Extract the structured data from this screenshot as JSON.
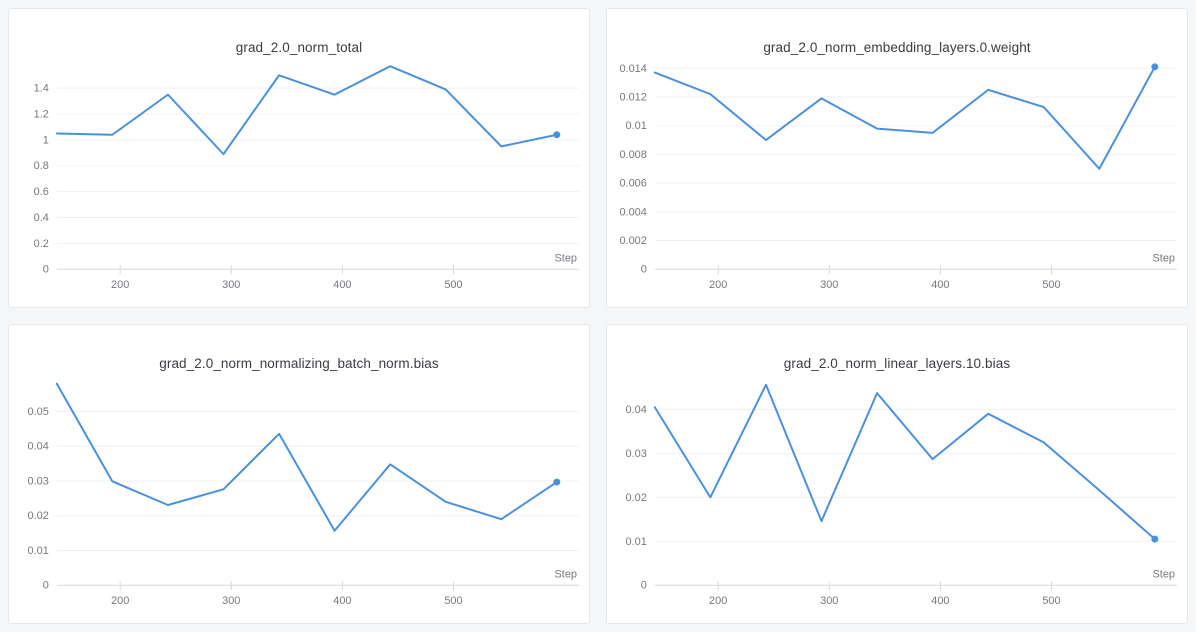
{
  "colors": {
    "line": "#4a90db",
    "endpoint_dot": "#4a90db",
    "gridline": "#f0f0f3",
    "axis_baseline": "#d9d9de",
    "tick_mark": "#d9d9de",
    "tick_label": "#78777f",
    "axis_label": "#78777f",
    "title": "#3b3b43",
    "card_background": "#ffffff",
    "card_border": "#e6e7e9",
    "page_background": "#f5f6f7"
  },
  "chart_data": [
    {
      "type": "line",
      "title": "grad_2.0_norm_total",
      "xlabel": "Step",
      "ylabel": "",
      "x": [
        143,
        193,
        243,
        293,
        343,
        393,
        443,
        493,
        543,
        593
      ],
      "values": [
        1.05,
        1.04,
        1.35,
        0.89,
        1.5,
        1.35,
        1.57,
        1.39,
        0.95,
        1.04
      ],
      "x_ticks": [
        200,
        300,
        400,
        500
      ],
      "xlim": [
        143,
        613
      ],
      "y_ticks": [
        0,
        0.2,
        0.4,
        0.6,
        0.8,
        1,
        1.2,
        1.4
      ],
      "y_tick_labels": [
        "0",
        "0.2",
        "0.4",
        "0.6",
        "0.8",
        "1",
        "1.2",
        "1.4"
      ],
      "ylim": [
        0,
        1.628
      ],
      "grid": "horizontal",
      "legend": "none",
      "endpoint_marker": true
    },
    {
      "type": "line",
      "title": "grad_2.0_norm_embedding_layers.0.weight",
      "xlabel": "Step",
      "ylabel": "",
      "x": [
        143,
        193,
        243,
        293,
        343,
        393,
        443,
        493,
        543,
        593
      ],
      "values": [
        0.0137,
        0.0122,
        0.009,
        0.0119,
        0.0098,
        0.0095,
        0.0125,
        0.0113,
        0.007,
        0.0141
      ],
      "x_ticks": [
        200,
        300,
        400,
        500
      ],
      "xlim": [
        143,
        613
      ],
      "y_ticks": [
        0,
        0.002,
        0.004,
        0.006,
        0.008,
        0.01,
        0.012,
        0.014
      ],
      "y_tick_labels": [
        "0",
        "0.002",
        "0.004",
        "0.006",
        "0.008",
        "0.01",
        "0.012",
        "0.014"
      ],
      "ylim": [
        0,
        0.01467
      ],
      "grid": "horizontal",
      "legend": "none",
      "endpoint_marker": true
    },
    {
      "type": "line",
      "title": "grad_2.0_norm_normalizing_batch_norm.bias",
      "xlabel": "Step",
      "ylabel": "",
      "x": [
        143,
        193,
        243,
        293,
        343,
        393,
        443,
        493,
        543,
        593
      ],
      "values": [
        0.058,
        0.0299,
        0.0231,
        0.0276,
        0.0436,
        0.0157,
        0.0348,
        0.024,
        0.019,
        0.0297
      ],
      "x_ticks": [
        200,
        300,
        400,
        500
      ],
      "xlim": [
        143,
        613
      ],
      "y_ticks": [
        0,
        0.01,
        0.02,
        0.03,
        0.04,
        0.05
      ],
      "y_tick_labels": [
        "0",
        "0.01",
        "0.02",
        "0.03",
        "0.04",
        "0.05"
      ],
      "ylim": [
        0,
        0.0606
      ],
      "grid": "horizontal",
      "legend": "none",
      "endpoint_marker": true
    },
    {
      "type": "line",
      "title": "grad_2.0_norm_linear_layers.10.bias",
      "xlabel": "Step",
      "ylabel": "",
      "x": [
        143,
        193,
        243,
        293,
        343,
        393,
        443,
        493,
        543,
        593
      ],
      "values": [
        0.0405,
        0.02,
        0.0456,
        0.0146,
        0.0437,
        0.0287,
        0.039,
        0.0325,
        0.0216,
        0.0105
      ],
      "x_ticks": [
        200,
        300,
        400,
        500
      ],
      "xlim": [
        143,
        613
      ],
      "y_ticks": [
        0,
        0.01,
        0.02,
        0.03,
        0.04
      ],
      "y_tick_labels": [
        "0",
        "0.01",
        "0.02",
        "0.03",
        "0.04"
      ],
      "ylim": [
        0,
        0.0479
      ],
      "grid": "horizontal",
      "legend": "none",
      "endpoint_marker": true
    }
  ]
}
